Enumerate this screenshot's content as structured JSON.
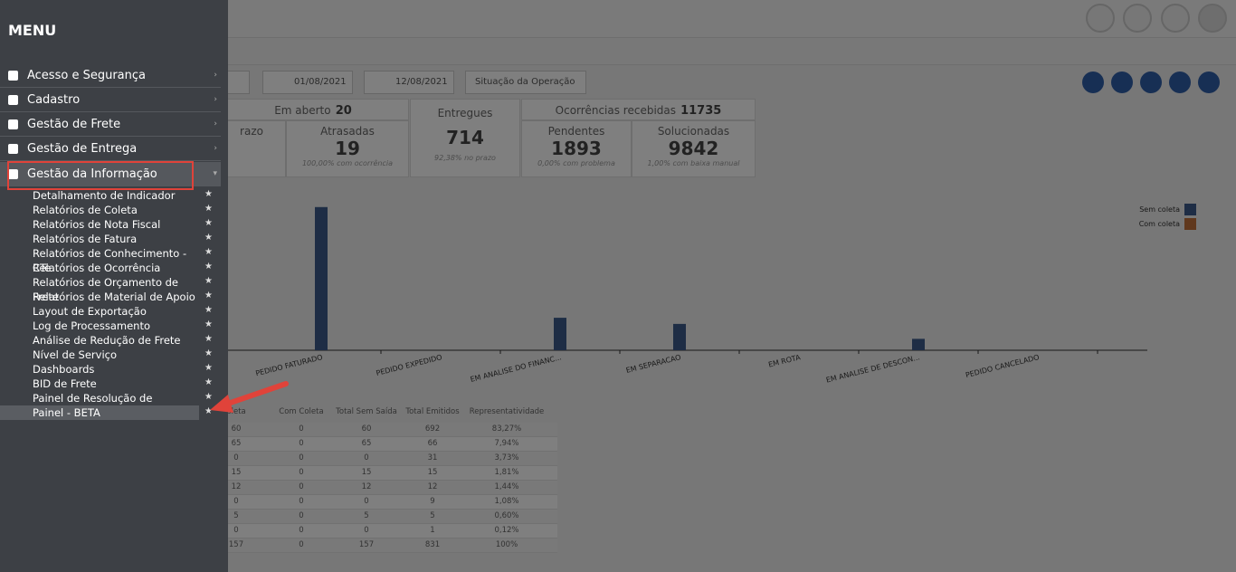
{
  "menu": {
    "title": "MENU",
    "items": [
      "Acesso e Segurança",
      "Cadastro",
      "Gestão de Frete",
      "Gestão de Entrega",
      "Gestão da Informação"
    ],
    "submenu": [
      "Detalhamento de Indicador",
      "Relatórios de Coleta",
      "Relatórios de Nota Fiscal",
      "Relatórios de Fatura",
      "Relatórios de Conhecimento - CTe",
      "Relatórios de Ocorrência",
      "Relatórios de Orçamento de Frete",
      "Relatórios de Material de Apoio",
      "Layout de Exportação",
      "Log de Processamento",
      "Análise de Redução de Frete",
      "Nível de Serviço",
      "Dashboards",
      "BID de Frete",
      "Painel de Resolução de Problemas",
      "Painel - BETA"
    ]
  },
  "filters": {
    "date_from": "01/08/2021",
    "date_to": "12/08/2021",
    "situation": "Situação da Operação"
  },
  "summary": {
    "open_label": "Em aberto",
    "open_value": "20",
    "cut_label": "razo",
    "late": {
      "label": "Atrasadas",
      "value": "19",
      "note": "100,00% com ocorrência"
    },
    "delivered": {
      "label": "Entregues",
      "value": "714",
      "note": "92,38% no prazo"
    },
    "occ_label": "Ocorrências recebidas",
    "occ_value": "11735",
    "pending": {
      "label": "Pendentes",
      "value": "1893",
      "note": "0,00% com problema"
    },
    "solved": {
      "label": "Solucionadas",
      "value": "9842",
      "note": "1,00% com baixa manual"
    }
  },
  "chart_data": {
    "type": "bar",
    "categories": [
      "PEDIDO FATURADO",
      "PEDIDO EXPEDIDO",
      "EM ANALISE DO FINANC...",
      "EM SEPARACAO",
      "EM ROTA",
      "EM ANALISE DE DESCON...",
      "PEDIDO CANCELADO"
    ],
    "series": [
      {
        "name": "Sem coleta",
        "color": "#3d5a8a",
        "values": [
          163,
          0,
          37,
          30,
          0,
          13,
          0
        ]
      },
      {
        "name": "Com coleta",
        "color": "#c0703a",
        "values": [
          0,
          0,
          0,
          0,
          0,
          0,
          0
        ]
      }
    ],
    "ylim": [
      0,
      170
    ]
  },
  "table": {
    "headers": [
      "pleta",
      "Com Coleta",
      "Total Sem Saída",
      "Total Emitidos",
      "Representatividade"
    ],
    "rows": [
      [
        "60",
        "0",
        "60",
        "692",
        "83,27%"
      ],
      [
        "65",
        "0",
        "65",
        "66",
        "7,94%"
      ],
      [
        "0",
        "0",
        "0",
        "31",
        "3,73%"
      ],
      [
        "15",
        "0",
        "15",
        "15",
        "1,81%"
      ],
      [
        "12",
        "0",
        "12",
        "12",
        "1,44%"
      ],
      [
        "0",
        "0",
        "0",
        "9",
        "1,08%"
      ],
      [
        "5",
        "0",
        "5",
        "5",
        "0,60%"
      ],
      [
        "0",
        "0",
        "0",
        "1",
        "0,12%"
      ],
      [
        "157",
        "0",
        "157",
        "831",
        "100%"
      ]
    ]
  }
}
